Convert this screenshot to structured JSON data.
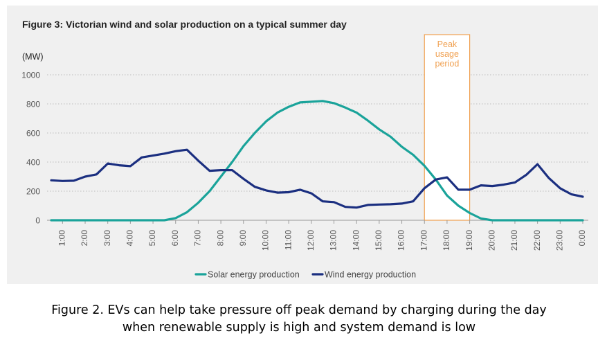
{
  "figure_title": "Figure 3: Victorian wind and solar production on a typical summer day",
  "unit_label": "(MW)",
  "caption": {
    "line1": "Figure 2. EVs can help take pressure off peak demand by charging during the day",
    "line2": "when renewable supply is high and system demand is low"
  },
  "colors": {
    "solar": "#1aa39a",
    "wind": "#1b2f80",
    "peak": "#f0a050",
    "axis_text": "#777777"
  },
  "chart_data": {
    "type": "line",
    "title": "Figure 3: Victorian wind and solar production on a typical summer day",
    "ylabel": "(MW)",
    "xlabel": "",
    "ylim": [
      0,
      1000
    ],
    "yticks": [
      0,
      200,
      400,
      600,
      800,
      1000
    ],
    "grid": true,
    "legend": "bottom",
    "x": [
      "0:30",
      "1:00",
      "1:30",
      "2:00",
      "2:30",
      "3:00",
      "3:30",
      "4:00",
      "4:30",
      "5:00",
      "5:30",
      "6:00",
      "6:30",
      "7:00",
      "7:30",
      "8:00",
      "8:30",
      "9:00",
      "9:30",
      "10:00",
      "10:30",
      "11:00",
      "11:30",
      "12:00",
      "12:30",
      "13:00",
      "13:30",
      "14:00",
      "14:30",
      "15:00",
      "15:30",
      "16:00",
      "16:30",
      "17:00",
      "17:30",
      "18:00",
      "18:30",
      "19:00",
      "19:30",
      "20:00",
      "20:30",
      "21:00",
      "21:30",
      "22:00",
      "22:30",
      "23:00",
      "23:30",
      "0:00"
    ],
    "tick_labels": [
      "1:00",
      "2:00",
      "3:00",
      "4:00",
      "5:00",
      "6:00",
      "7:00",
      "8:00",
      "9:00",
      "10:00",
      "11:00",
      "12:00",
      "13:00",
      "14:00",
      "15:00",
      "16:00",
      "17:00",
      "18:00",
      "19:00",
      "20:00",
      "21:00",
      "22:00",
      "23:00",
      "0:00"
    ],
    "series": [
      {
        "name": "Solar energy production",
        "values": [
          0,
          0,
          0,
          0,
          0,
          0,
          0,
          0,
          0,
          0,
          0,
          15,
          55,
          120,
          200,
          300,
          400,
          510,
          600,
          680,
          740,
          780,
          810,
          815,
          820,
          805,
          775,
          740,
          685,
          625,
          575,
          505,
          450,
          375,
          280,
          170,
          100,
          50,
          12,
          0,
          0,
          0,
          0,
          0,
          0,
          0,
          0,
          0
        ]
      },
      {
        "name": "Wind energy production",
        "values": [
          275,
          270,
          272,
          300,
          315,
          390,
          378,
          372,
          432,
          445,
          458,
          475,
          485,
          410,
          340,
          345,
          345,
          285,
          230,
          205,
          190,
          193,
          210,
          185,
          130,
          125,
          92,
          87,
          105,
          108,
          110,
          115,
          130,
          220,
          280,
          295,
          210,
          210,
          240,
          235,
          245,
          260,
          312,
          385,
          290,
          220,
          178,
          162
        ]
      }
    ],
    "annotations": [
      {
        "text": "Peak usage period",
        "lines": [
          "Peak",
          "usage",
          "period"
        ],
        "x_from": "17:00",
        "x_to": "19:00"
      }
    ]
  }
}
